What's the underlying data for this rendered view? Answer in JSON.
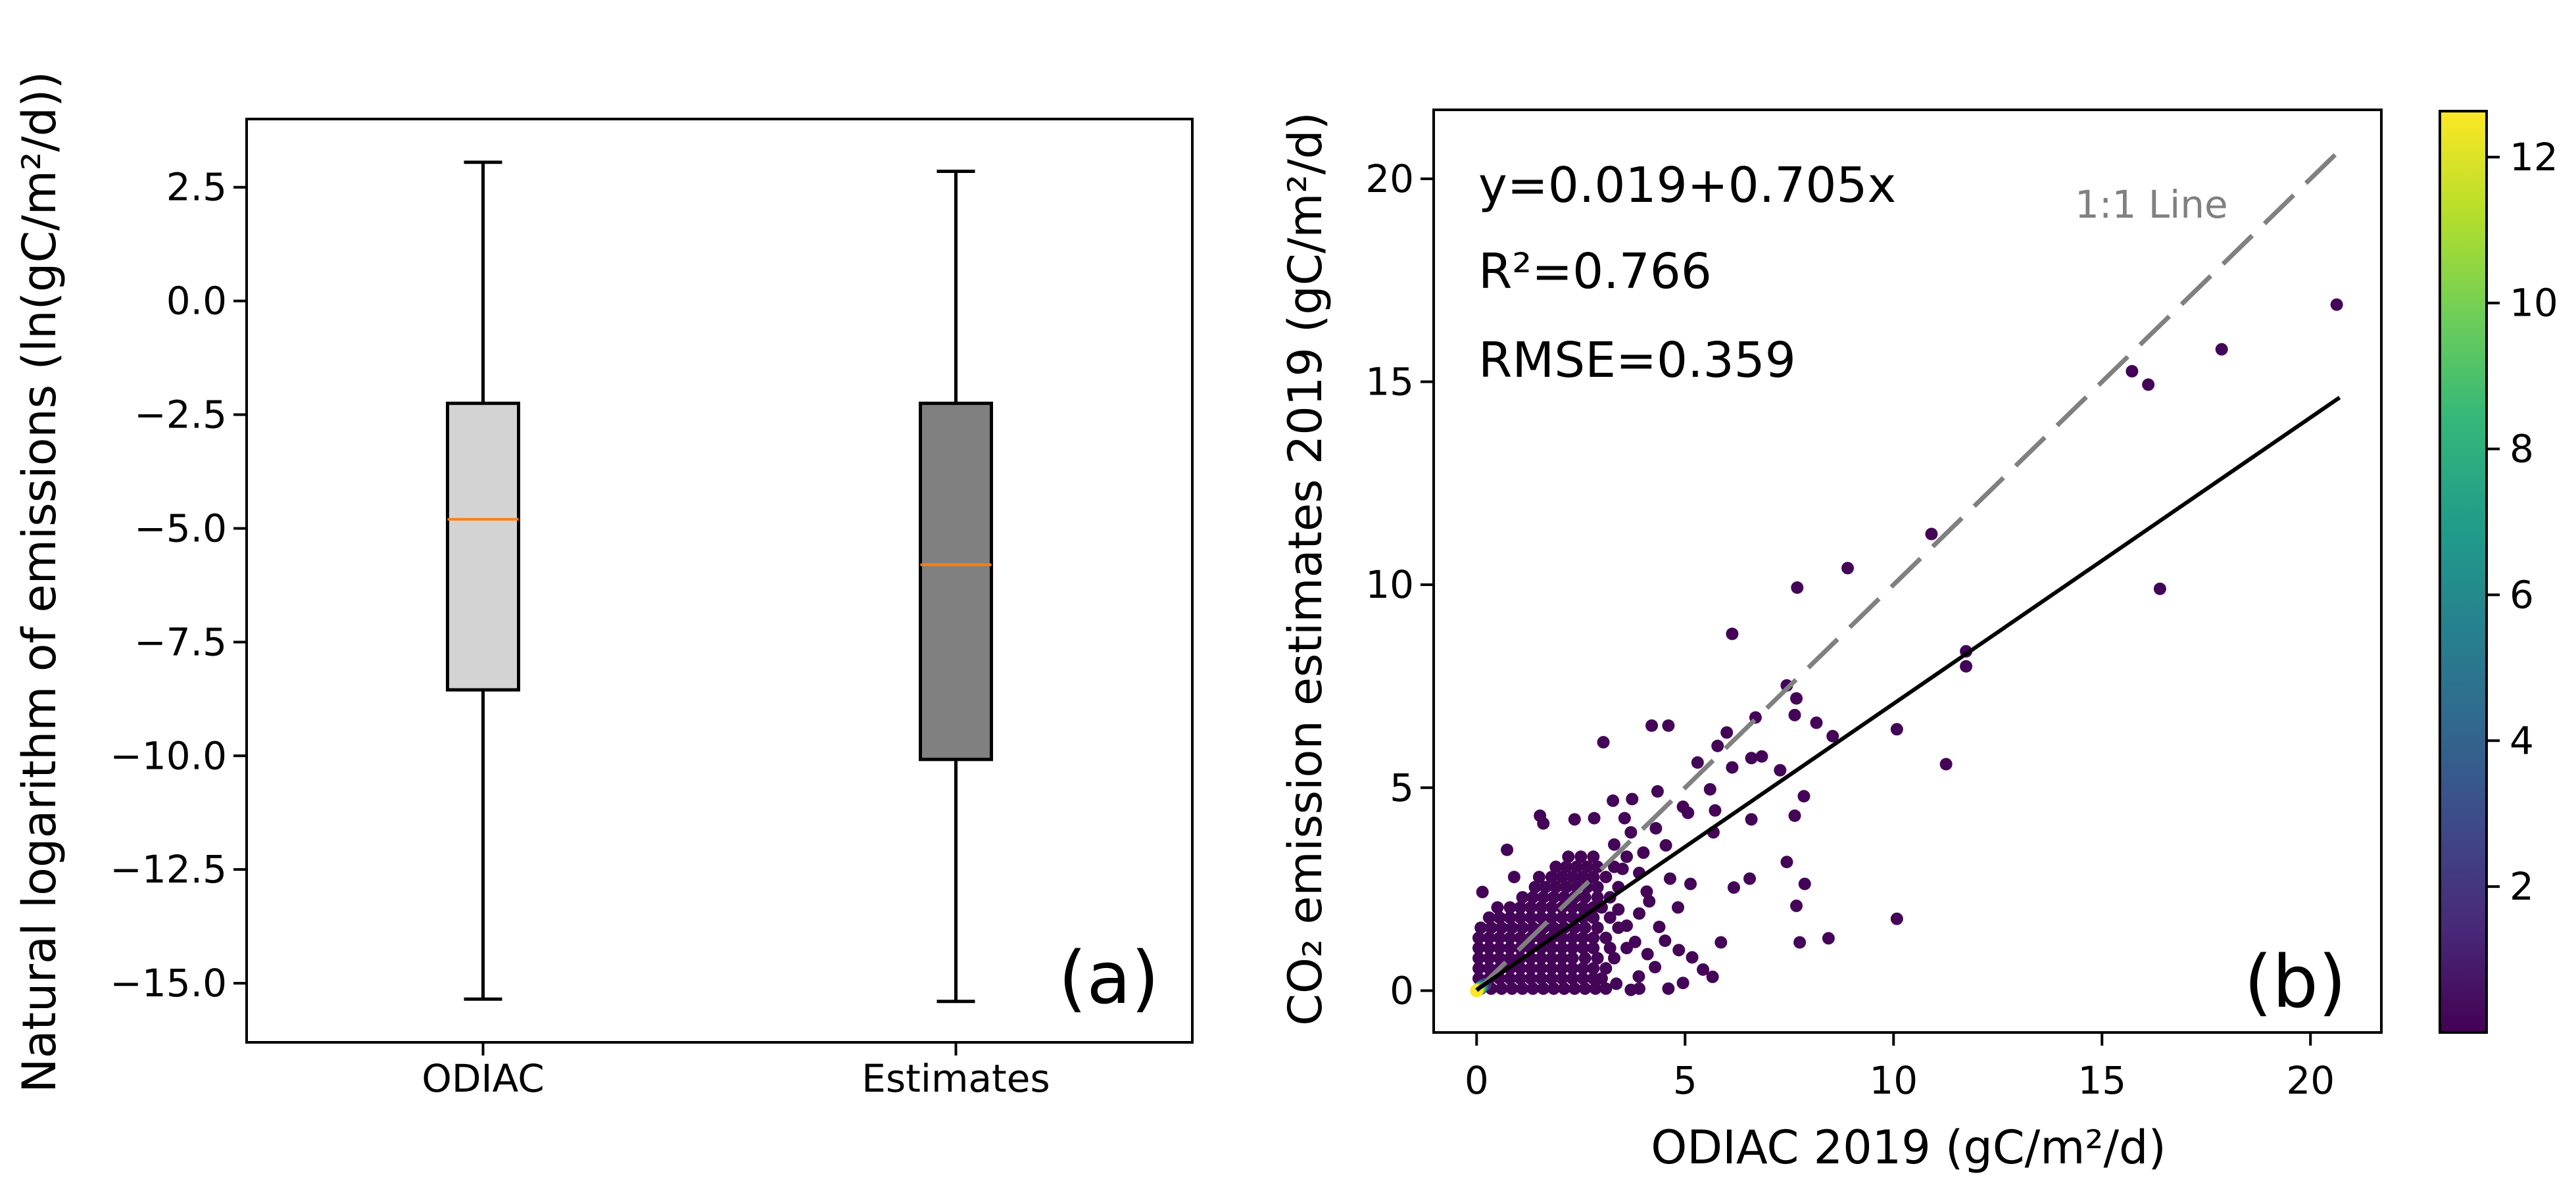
{
  "chart_data": [
    {
      "type": "box",
      "panel_label": "(a)",
      "ylabel": "Natural logarithm of emissions (ln(gC/m²/d))",
      "xlabel": "",
      "categories": [
        "ODIAC",
        "Estimates"
      ],
      "ylim": [
        -16.3,
        4.0
      ],
      "yticks": [
        2.5,
        0.0,
        -2.5,
        -5.0,
        -7.5,
        -10.0,
        -12.5,
        -15.0
      ],
      "ytick_labels": [
        "2.5",
        "0.0",
        "−2.5",
        "−5.0",
        "−7.5",
        "−10.0",
        "−12.5",
        "−15.0"
      ],
      "boxes": [
        {
          "name": "ODIAC",
          "whisker_low": -15.35,
          "q1": -8.55,
          "median": -4.8,
          "q3": -2.25,
          "whisker_high": 3.05,
          "fill": "#d3d3d3"
        },
        {
          "name": "Estimates",
          "whisker_low": -15.4,
          "q1": -10.08,
          "median": -5.8,
          "q3": -2.25,
          "whisker_high": 2.85,
          "fill": "#808080"
        }
      ],
      "median_color": "#ff7f0e",
      "grid": false
    },
    {
      "type": "scatter",
      "panel_label": "(b)",
      "xlabel": "ODIAC 2019 (gC/m²/d)",
      "ylabel": "CO₂ emission estimates 2019 (gC/m²/d)",
      "xlim": [
        -1.03,
        21.7
      ],
      "ylim": [
        -1.03,
        21.7
      ],
      "xticks": [
        0,
        5,
        10,
        15,
        20
      ],
      "xtick_labels": [
        "0",
        "5",
        "10",
        "15",
        "20"
      ],
      "yticks": [
        0,
        5,
        10,
        15,
        20
      ],
      "ytick_labels": [
        "0",
        "5",
        "10",
        "15",
        "20"
      ],
      "annotations": {
        "equation": "y=0.019+0.705x",
        "r2": "R²=0.766",
        "rmse": "RMSE=0.359",
        "one_to_one_label": "1:1 Line"
      },
      "fit_line": {
        "intercept": 0.019,
        "slope": 0.705,
        "x_range": [
          0,
          20.7
        ],
        "color": "#000000"
      },
      "one_to_one_line": {
        "x_range": [
          0,
          20.6
        ],
        "color": "#808080",
        "style": "dashed"
      },
      "colorbar": {
        "range": [
          0,
          12.63
        ],
        "ticks": [
          2,
          4,
          6,
          8,
          10,
          12
        ],
        "tick_labels": [
          "2",
          "4",
          "6",
          "8",
          "10",
          "12"
        ],
        "colormap": [
          "#440154",
          "#482878",
          "#3e4989",
          "#31688e",
          "#26828e",
          "#1f9e89",
          "#35b779",
          "#6ece58",
          "#b5de2b",
          "#fde725"
        ]
      },
      "points": [
        [
          20.63,
          16.9
        ],
        [
          17.87,
          15.8
        ],
        [
          15.72,
          15.26
        ],
        [
          16.11,
          14.93
        ],
        [
          16.39,
          9.9
        ],
        [
          10.91,
          11.25
        ],
        [
          8.9,
          10.41
        ],
        [
          7.69,
          9.93
        ],
        [
          6.13,
          8.79
        ],
        [
          11.74,
          8.36
        ],
        [
          11.74,
          7.99
        ],
        [
          10.08,
          6.44
        ],
        [
          7.44,
          7.52
        ],
        [
          7.67,
          7.2
        ],
        [
          7.63,
          6.79
        ],
        [
          8.15,
          6.6
        ],
        [
          6.69,
          6.73
        ],
        [
          8.54,
          6.27
        ],
        [
          4.2,
          6.53
        ],
        [
          4.6,
          6.53
        ],
        [
          3.04,
          6.12
        ],
        [
          6.0,
          6.36
        ],
        [
          5.78,
          6.03
        ],
        [
          5.3,
          5.62
        ],
        [
          6.13,
          5.5
        ],
        [
          6.59,
          5.73
        ],
        [
          6.84,
          5.77
        ],
        [
          7.28,
          5.43
        ],
        [
          11.26,
          5.58
        ],
        [
          5.6,
          4.96
        ],
        [
          7.85,
          4.79
        ],
        [
          6.59,
          4.22
        ],
        [
          7.63,
          4.31
        ],
        [
          7.44,
          3.17
        ],
        [
          7.67,
          2.09
        ],
        [
          7.87,
          2.63
        ],
        [
          7.75,
          1.19
        ],
        [
          8.44,
          1.29
        ],
        [
          10.08,
          1.77
        ],
        [
          5.86,
          1.19
        ],
        [
          5.66,
          0.34
        ],
        [
          5.43,
          0.52
        ],
        [
          4.95,
          0.19
        ],
        [
          6.17,
          2.54
        ],
        [
          6.55,
          2.76
        ],
        [
          5.13,
          2.63
        ],
        [
          4.83,
          2.05
        ],
        [
          4.64,
          2.76
        ],
        [
          4.38,
          1.57
        ],
        [
          4.52,
          1.23
        ],
        [
          4.28,
          0.58
        ],
        [
          4.85,
          1.0
        ],
        [
          5.17,
          0.82
        ],
        [
          5.68,
          3.9
        ],
        [
          5.72,
          4.44
        ],
        [
          4.95,
          4.53
        ],
        [
          5.07,
          4.38
        ],
        [
          4.34,
          4.91
        ],
        [
          3.73,
          4.72
        ],
        [
          3.27,
          4.68
        ],
        [
          3.55,
          4.25
        ],
        [
          2.35,
          4.22
        ],
        [
          2.82,
          4.25
        ],
        [
          1.52,
          4.31
        ],
        [
          1.6,
          4.12
        ],
        [
          0.73,
          3.47
        ],
        [
          0.14,
          2.43
        ],
        [
          4.54,
          3.58
        ],
        [
          4.08,
          2.44
        ],
        [
          4.14,
          2.2
        ],
        [
          3.35,
          0.17
        ],
        [
          3.7,
          0.02
        ],
        [
          3.89,
          0.35
        ],
        [
          3.6,
          1.6
        ],
        [
          3.9,
          1.9
        ],
        [
          3.4,
          2.0
        ],
        [
          3.8,
          1.2
        ],
        [
          4.1,
          0.9
        ],
        [
          3.3,
          3.6
        ],
        [
          3.7,
          3.9
        ],
        [
          4.0,
          3.4
        ],
        [
          3.5,
          3.0
        ],
        [
          3.9,
          2.9
        ],
        [
          4.3,
          4.0
        ]
      ],
      "cluster_rows": [
        {
          "y": 0.05,
          "x": [
            0.1,
            0.35,
            0.6,
            0.85,
            1.1,
            1.35,
            1.6,
            1.85,
            2.1,
            2.35,
            2.6,
            2.85,
            3.1,
            3.9,
            4.6
          ]
        },
        {
          "y": 0.3,
          "x": [
            0.05,
            0.3,
            0.55,
            0.8,
            1.05,
            1.3,
            1.55,
            1.8,
            2.05,
            2.3,
            2.55,
            2.8,
            3.0
          ]
        },
        {
          "y": 0.55,
          "x": [
            0.05,
            0.3,
            0.55,
            0.8,
            1.05,
            1.3,
            1.55,
            1.8,
            2.05,
            2.3,
            2.55,
            2.8,
            3.1
          ]
        },
        {
          "y": 0.8,
          "x": [
            0.05,
            0.3,
            0.55,
            0.8,
            1.05,
            1.3,
            1.55,
            1.8,
            2.05,
            2.3,
            2.6,
            2.9,
            3.3
          ]
        },
        {
          "y": 1.05,
          "x": [
            0.05,
            0.3,
            0.55,
            0.8,
            1.05,
            1.3,
            1.55,
            1.8,
            2.05,
            2.3,
            2.55,
            2.8,
            3.2,
            3.6
          ]
        },
        {
          "y": 1.3,
          "x": [
            0.05,
            0.3,
            0.55,
            0.8,
            1.05,
            1.3,
            1.55,
            1.8,
            2.05,
            2.3,
            2.55,
            2.8,
            3.1
          ]
        },
        {
          "y": 1.55,
          "x": [
            0.1,
            0.35,
            0.6,
            0.85,
            1.1,
            1.35,
            1.6,
            1.85,
            2.1,
            2.35,
            2.6,
            2.9,
            3.4
          ]
        },
        {
          "y": 1.8,
          "x": [
            0.3,
            0.55,
            0.8,
            1.05,
            1.3,
            1.55,
            1.8,
            2.05,
            2.3,
            2.55,
            2.8,
            3.2
          ]
        },
        {
          "y": 2.05,
          "x": [
            0.5,
            0.8,
            1.05,
            1.3,
            1.55,
            1.8,
            2.05,
            2.3,
            2.55,
            2.8,
            3.0
          ]
        },
        {
          "y": 2.3,
          "x": [
            1.1,
            1.35,
            1.6,
            1.85,
            2.1,
            2.35,
            2.6,
            2.9,
            3.2
          ]
        },
        {
          "y": 2.55,
          "x": [
            1.4,
            1.65,
            1.9,
            2.15,
            2.4,
            2.65,
            2.9,
            3.4
          ]
        },
        {
          "y": 2.8,
          "x": [
            0.9,
            1.5,
            1.8,
            2.05,
            2.3,
            2.55,
            2.8,
            3.1
          ]
        },
        {
          "y": 3.05,
          "x": [
            1.9,
            2.15,
            2.4,
            2.65,
            2.9,
            3.3
          ]
        },
        {
          "y": 3.3,
          "x": [
            2.2,
            2.5,
            2.8,
            3.6
          ]
        }
      ],
      "dense_points": [
        [
          0.2,
          0.15,
          2.0
        ],
        [
          0.12,
          0.1,
          4.5
        ],
        [
          0.08,
          0.06,
          7.5
        ],
        [
          0.04,
          0.03,
          10.0
        ],
        [
          0.0,
          0.0,
          12.6
        ]
      ],
      "base_density": 0.1,
      "grid": false
    }
  ]
}
